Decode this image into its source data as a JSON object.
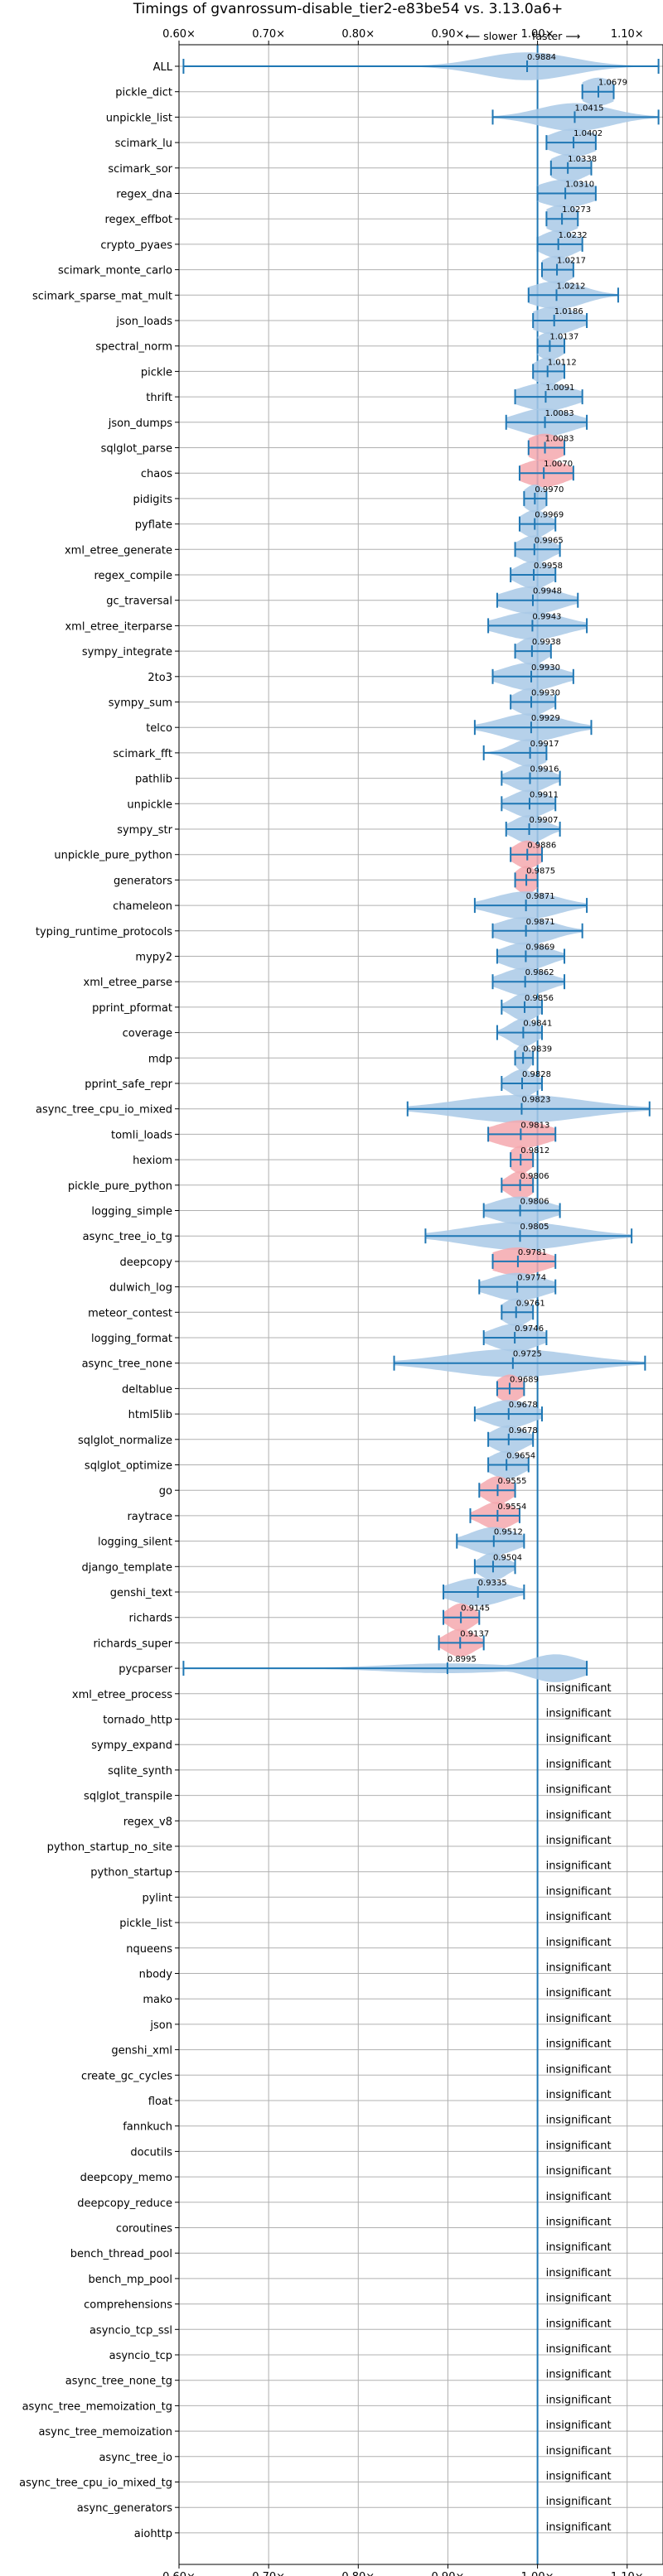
{
  "chart_data": {
    "type": "violin",
    "title": "Timings of gvanrossum-disable_tier2-e83be54 vs. 3.13.0a6+",
    "direction_labels": {
      "slower": "⟵ slower",
      "faster": "faster ⟶"
    },
    "xlim": [
      0.6,
      1.14
    ],
    "xticks": [
      0.6,
      0.7,
      0.8,
      0.9,
      1.0,
      1.1
    ],
    "xtick_labels": [
      "0.60×",
      "0.70×",
      "0.80×",
      "0.90×",
      "1.00×",
      "1.10×"
    ],
    "reference_line": 1.0,
    "grid": true,
    "colors": {
      "faster": "#a9c9e6",
      "slower": "#f5a8ae",
      "axis": "#1f77b4",
      "grid": "#b0b0b0"
    },
    "insignificant_label": "insignificant",
    "benchmarks": [
      {
        "name": "ALL",
        "mean": 0.9884,
        "label": "0.9884",
        "min": 0.605,
        "max": 1.135,
        "color": "blue",
        "spread": 0.05,
        "peak": 0.18
      },
      {
        "name": "pickle_dict",
        "mean": 1.0679,
        "label": "1.0679",
        "min": 1.05,
        "max": 1.085,
        "color": "blue",
        "spread": 0.02
      },
      {
        "name": "unpickle_list",
        "mean": 1.0415,
        "label": "1.0415",
        "min": 0.95,
        "max": 1.135,
        "color": "blue",
        "spread": 0.04
      },
      {
        "name": "scimark_lu",
        "mean": 1.0402,
        "label": "1.0402",
        "min": 1.01,
        "max": 1.065,
        "color": "blue",
        "spread": 0.025
      },
      {
        "name": "scimark_sor",
        "mean": 1.0338,
        "label": "1.0338",
        "min": 1.015,
        "max": 1.06,
        "color": "blue",
        "spread": 0.02
      },
      {
        "name": "regex_dna",
        "mean": 1.031,
        "label": "1.0310",
        "min": 1.0,
        "max": 1.065,
        "color": "blue",
        "spread": 0.03
      },
      {
        "name": "regex_effbot",
        "mean": 1.0273,
        "label": "1.0273",
        "min": 1.01,
        "max": 1.045,
        "color": "blue",
        "spread": 0.02
      },
      {
        "name": "crypto_pyaes",
        "mean": 1.0232,
        "label": "1.0232",
        "min": 1.0,
        "max": 1.05,
        "color": "blue",
        "spread": 0.02
      },
      {
        "name": "scimark_monte_carlo",
        "mean": 1.0217,
        "label": "1.0217",
        "min": 1.005,
        "max": 1.04,
        "color": "blue",
        "spread": 0.018
      },
      {
        "name": "scimark_sparse_mat_mult",
        "mean": 1.0212,
        "label": "1.0212",
        "min": 0.99,
        "max": 1.09,
        "color": "blue",
        "spread": 0.03
      },
      {
        "name": "json_loads",
        "mean": 1.0186,
        "label": "1.0186",
        "min": 0.995,
        "max": 1.055,
        "color": "blue",
        "spread": 0.025
      },
      {
        "name": "spectral_norm",
        "mean": 1.0137,
        "label": "1.0137",
        "min": 1.0,
        "max": 1.03,
        "color": "blue",
        "spread": 0.015
      },
      {
        "name": "pickle",
        "mean": 1.0112,
        "label": "1.0112",
        "min": 0.995,
        "max": 1.03,
        "color": "blue",
        "spread": 0.015
      },
      {
        "name": "thrift",
        "mean": 1.0091,
        "label": "1.0091",
        "min": 0.975,
        "max": 1.05,
        "color": "blue",
        "spread": 0.03
      },
      {
        "name": "json_dumps",
        "mean": 1.0083,
        "label": "1.0083",
        "min": 0.965,
        "max": 1.055,
        "color": "blue",
        "spread": 0.03
      },
      {
        "name": "sqlglot_parse",
        "mean": 1.0083,
        "label": "1.0083",
        "min": 0.99,
        "max": 1.03,
        "color": "red",
        "spread": 0.02
      },
      {
        "name": "chaos",
        "mean": 1.007,
        "label": "1.0070",
        "min": 0.98,
        "max": 1.04,
        "color": "red",
        "spread": 0.025
      },
      {
        "name": "pidigits",
        "mean": 0.997,
        "label": "0.9970",
        "min": 0.985,
        "max": 1.01,
        "color": "blue",
        "spread": 0.012
      },
      {
        "name": "pyflate",
        "mean": 0.9969,
        "label": "0.9969",
        "min": 0.98,
        "max": 1.02,
        "color": "blue",
        "spread": 0.015
      },
      {
        "name": "xml_etree_generate",
        "mean": 0.9965,
        "label": "0.9965",
        "min": 0.975,
        "max": 1.025,
        "color": "blue",
        "spread": 0.018
      },
      {
        "name": "regex_compile",
        "mean": 0.9958,
        "label": "0.9958",
        "min": 0.97,
        "max": 1.02,
        "color": "blue",
        "spread": 0.018
      },
      {
        "name": "gc_traversal",
        "mean": 0.9948,
        "label": "0.9948",
        "min": 0.955,
        "max": 1.045,
        "color": "blue",
        "spread": 0.03
      },
      {
        "name": "xml_etree_iterparse",
        "mean": 0.9943,
        "label": "0.9943",
        "min": 0.945,
        "max": 1.055,
        "color": "blue",
        "spread": 0.035
      },
      {
        "name": "sympy_integrate",
        "mean": 0.9938,
        "label": "0.9938",
        "min": 0.975,
        "max": 1.015,
        "color": "blue",
        "spread": 0.015
      },
      {
        "name": "2to3",
        "mean": 0.993,
        "label": "0.9930",
        "min": 0.95,
        "max": 1.04,
        "color": "blue",
        "spread": 0.03
      },
      {
        "name": "sympy_sum",
        "mean": 0.993,
        "label": "0.9930",
        "min": 0.97,
        "max": 1.02,
        "color": "blue",
        "spread": 0.018
      },
      {
        "name": "telco",
        "mean": 0.9929,
        "label": "0.9929",
        "min": 0.93,
        "max": 1.06,
        "color": "blue",
        "spread": 0.035
      },
      {
        "name": "scimark_fft",
        "mean": 0.9917,
        "label": "0.9917",
        "min": 0.94,
        "max": 1.01,
        "color": "blue",
        "spread": 0.02
      },
      {
        "name": "pathlib",
        "mean": 0.9916,
        "label": "0.9916",
        "min": 0.96,
        "max": 1.025,
        "color": "blue",
        "spread": 0.02
      },
      {
        "name": "unpickle",
        "mean": 0.9911,
        "label": "0.9911",
        "min": 0.96,
        "max": 1.02,
        "color": "blue",
        "spread": 0.02
      },
      {
        "name": "sympy_str",
        "mean": 0.9907,
        "label": "0.9907",
        "min": 0.965,
        "max": 1.025,
        "color": "blue",
        "spread": 0.018
      },
      {
        "name": "unpickle_pure_python",
        "mean": 0.9886,
        "label": "0.9886",
        "min": 0.97,
        "max": 1.005,
        "color": "red",
        "spread": 0.015
      },
      {
        "name": "generators",
        "mean": 0.9875,
        "label": "0.9875",
        "min": 0.975,
        "max": 1.0,
        "color": "red",
        "spread": 0.012
      },
      {
        "name": "chameleon",
        "mean": 0.9871,
        "label": "0.9871",
        "min": 0.93,
        "max": 1.055,
        "color": "blue",
        "spread": 0.035
      },
      {
        "name": "typing_runtime_protocols",
        "mean": 0.9871,
        "label": "0.9871",
        "min": 0.95,
        "max": 1.05,
        "color": "blue",
        "spread": 0.03
      },
      {
        "name": "mypy2",
        "mean": 0.9869,
        "label": "0.9869",
        "min": 0.955,
        "max": 1.03,
        "color": "blue",
        "spread": 0.025
      },
      {
        "name": "xml_etree_parse",
        "mean": 0.9862,
        "label": "0.9862",
        "min": 0.95,
        "max": 1.03,
        "color": "blue",
        "spread": 0.025
      },
      {
        "name": "pprint_pformat",
        "mean": 0.9856,
        "label": "0.9856",
        "min": 0.96,
        "max": 1.005,
        "color": "blue",
        "spread": 0.015
      },
      {
        "name": "coverage",
        "mean": 0.9841,
        "label": "0.9841",
        "min": 0.955,
        "max": 1.005,
        "color": "blue",
        "spread": 0.015
      },
      {
        "name": "mdp",
        "mean": 0.9839,
        "label": "0.9839",
        "min": 0.975,
        "max": 0.995,
        "color": "blue",
        "spread": 0.008
      },
      {
        "name": "pprint_safe_repr",
        "mean": 0.9828,
        "label": "0.9828",
        "min": 0.96,
        "max": 1.005,
        "color": "blue",
        "spread": 0.015
      },
      {
        "name": "async_tree_cpu_io_mixed",
        "mean": 0.9823,
        "label": "0.9823",
        "min": 0.855,
        "max": 1.125,
        "color": "blue",
        "spread": 0.07
      },
      {
        "name": "tomli_loads",
        "mean": 0.9813,
        "label": "0.9813",
        "min": 0.945,
        "max": 1.02,
        "color": "red",
        "spread": 0.03
      },
      {
        "name": "hexiom",
        "mean": 0.9812,
        "label": "0.9812",
        "min": 0.97,
        "max": 0.995,
        "color": "red",
        "spread": 0.012
      },
      {
        "name": "pickle_pure_python",
        "mean": 0.9806,
        "label": "0.9806",
        "min": 0.96,
        "max": 0.995,
        "color": "red",
        "spread": 0.014
      },
      {
        "name": "logging_simple",
        "mean": 0.9806,
        "label": "0.9806",
        "min": 0.94,
        "max": 1.025,
        "color": "blue",
        "spread": 0.03
      },
      {
        "name": "async_tree_io_tg",
        "mean": 0.9805,
        "label": "0.9805",
        "min": 0.875,
        "max": 1.105,
        "color": "blue",
        "spread": 0.06
      },
      {
        "name": "deepcopy",
        "mean": 0.9781,
        "label": "0.9781",
        "min": 0.95,
        "max": 1.02,
        "color": "red",
        "spread": 0.03
      },
      {
        "name": "dulwich_log",
        "mean": 0.9774,
        "label": "0.9774",
        "min": 0.935,
        "max": 1.02,
        "color": "blue",
        "spread": 0.03
      },
      {
        "name": "meteor_contest",
        "mean": 0.9761,
        "label": "0.9761",
        "min": 0.96,
        "max": 0.995,
        "color": "blue",
        "spread": 0.015
      },
      {
        "name": "logging_format",
        "mean": 0.9746,
        "label": "0.9746",
        "min": 0.94,
        "max": 1.01,
        "color": "blue",
        "spread": 0.025
      },
      {
        "name": "async_tree_none",
        "mean": 0.9725,
        "label": "0.9725",
        "min": 0.84,
        "max": 1.12,
        "color": "blue",
        "spread": 0.07
      },
      {
        "name": "deltablue",
        "mean": 0.9689,
        "label": "0.9689",
        "min": 0.955,
        "max": 0.985,
        "color": "red",
        "spread": 0.014
      },
      {
        "name": "html5lib",
        "mean": 0.9678,
        "label": "0.9678",
        "min": 0.93,
        "max": 1.005,
        "color": "blue",
        "spread": 0.025
      },
      {
        "name": "sqlglot_normalize",
        "mean": 0.9678,
        "label": "0.9678",
        "min": 0.945,
        "max": 0.995,
        "color": "blue",
        "spread": 0.018
      },
      {
        "name": "sqlglot_optimize",
        "mean": 0.9654,
        "label": "0.9654",
        "min": 0.945,
        "max": 0.99,
        "color": "blue",
        "spread": 0.018
      },
      {
        "name": "go",
        "mean": 0.9555,
        "label": "0.9555",
        "min": 0.935,
        "max": 0.975,
        "color": "red",
        "spread": 0.015
      },
      {
        "name": "raytrace",
        "mean": 0.9554,
        "label": "0.9554",
        "min": 0.925,
        "max": 0.98,
        "color": "red",
        "spread": 0.018
      },
      {
        "name": "logging_silent",
        "mean": 0.9512,
        "label": "0.9512",
        "min": 0.91,
        "max": 0.985,
        "color": "blue",
        "spread": 0.025
      },
      {
        "name": "django_template",
        "mean": 0.9504,
        "label": "0.9504",
        "min": 0.93,
        "max": 0.975,
        "color": "blue",
        "spread": 0.015
      },
      {
        "name": "genshi_text",
        "mean": 0.9335,
        "label": "0.9335",
        "min": 0.895,
        "max": 0.985,
        "color": "blue",
        "spread": 0.03
      },
      {
        "name": "richards",
        "mean": 0.9145,
        "label": "0.9145",
        "min": 0.895,
        "max": 0.935,
        "color": "red",
        "spread": 0.014
      },
      {
        "name": "richards_super",
        "mean": 0.9137,
        "label": "0.9137",
        "min": 0.89,
        "max": 0.94,
        "color": "red",
        "spread": 0.016
      },
      {
        "name": "pycparser",
        "mean": 0.8995,
        "label": "0.8995",
        "min": 0.605,
        "max": 1.055,
        "color": "blue",
        "spread": 0.07,
        "skew": true
      },
      {
        "name": "xml_etree_process",
        "insignificant": true
      },
      {
        "name": "tornado_http",
        "insignificant": true
      },
      {
        "name": "sympy_expand",
        "insignificant": true
      },
      {
        "name": "sqlite_synth",
        "insignificant": true
      },
      {
        "name": "sqlglot_transpile",
        "insignificant": true
      },
      {
        "name": "regex_v8",
        "insignificant": true
      },
      {
        "name": "python_startup_no_site",
        "insignificant": true
      },
      {
        "name": "python_startup",
        "insignificant": true
      },
      {
        "name": "pylint",
        "insignificant": true
      },
      {
        "name": "pickle_list",
        "insignificant": true
      },
      {
        "name": "nqueens",
        "insignificant": true
      },
      {
        "name": "nbody",
        "insignificant": true
      },
      {
        "name": "mako",
        "insignificant": true
      },
      {
        "name": "json",
        "insignificant": true
      },
      {
        "name": "genshi_xml",
        "insignificant": true
      },
      {
        "name": "create_gc_cycles",
        "insignificant": true
      },
      {
        "name": "float",
        "insignificant": true
      },
      {
        "name": "fannkuch",
        "insignificant": true
      },
      {
        "name": "docutils",
        "insignificant": true
      },
      {
        "name": "deepcopy_memo",
        "insignificant": true
      },
      {
        "name": "deepcopy_reduce",
        "insignificant": true
      },
      {
        "name": "coroutines",
        "insignificant": true
      },
      {
        "name": "bench_thread_pool",
        "insignificant": true
      },
      {
        "name": "bench_mp_pool",
        "insignificant": true
      },
      {
        "name": "comprehensions",
        "insignificant": true
      },
      {
        "name": "asyncio_tcp_ssl",
        "insignificant": true
      },
      {
        "name": "asyncio_tcp",
        "insignificant": true
      },
      {
        "name": "async_tree_none_tg",
        "insignificant": true
      },
      {
        "name": "async_tree_memoization_tg",
        "insignificant": true
      },
      {
        "name": "async_tree_memoization",
        "insignificant": true
      },
      {
        "name": "async_tree_io",
        "insignificant": true
      },
      {
        "name": "async_tree_cpu_io_mixed_tg",
        "insignificant": true
      },
      {
        "name": "async_generators",
        "insignificant": true
      },
      {
        "name": "aiohttp",
        "insignificant": true
      }
    ]
  }
}
